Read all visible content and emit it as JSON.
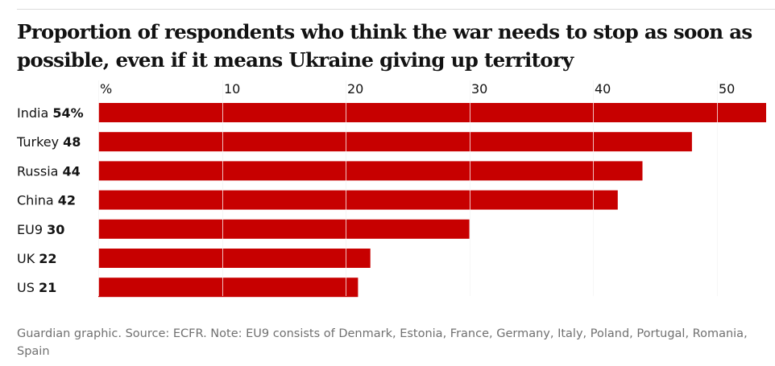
{
  "title": "Proportion of respondents who think the war needs to stop as soon as possible, even if it means Ukraine giving up territory",
  "footnote": "Guardian graphic. Source: ECFR. Note: EU9 consists of Denmark, Estonia, France, Germany, Italy, Poland, Portugal, Romania, Spain",
  "colors": {
    "bar": "#c70000",
    "axis_line": "#dcdcdc",
    "grid_on_bar": "#ffffff"
  },
  "chart_data": {
    "type": "bar",
    "orientation": "horizontal",
    "title": "Proportion of respondents who think the war needs to stop as soon as possible, even if it means Ukraine giving up territory",
    "categories": [
      "India",
      "Turkey",
      "Russia",
      "China",
      "EU9",
      "UK",
      "US"
    ],
    "values": [
      54,
      48,
      44,
      42,
      30,
      22,
      21
    ],
    "value_labels": [
      "54%",
      "48",
      "44",
      "42",
      "30",
      "22",
      "21"
    ],
    "x_ticks": [
      0,
      10,
      20,
      30,
      40,
      50
    ],
    "x_tick_labels": [
      "%",
      "10",
      "20",
      "30",
      "40",
      "50"
    ],
    "xlim": [
      0,
      54
    ],
    "grid": true,
    "legend": "none"
  }
}
